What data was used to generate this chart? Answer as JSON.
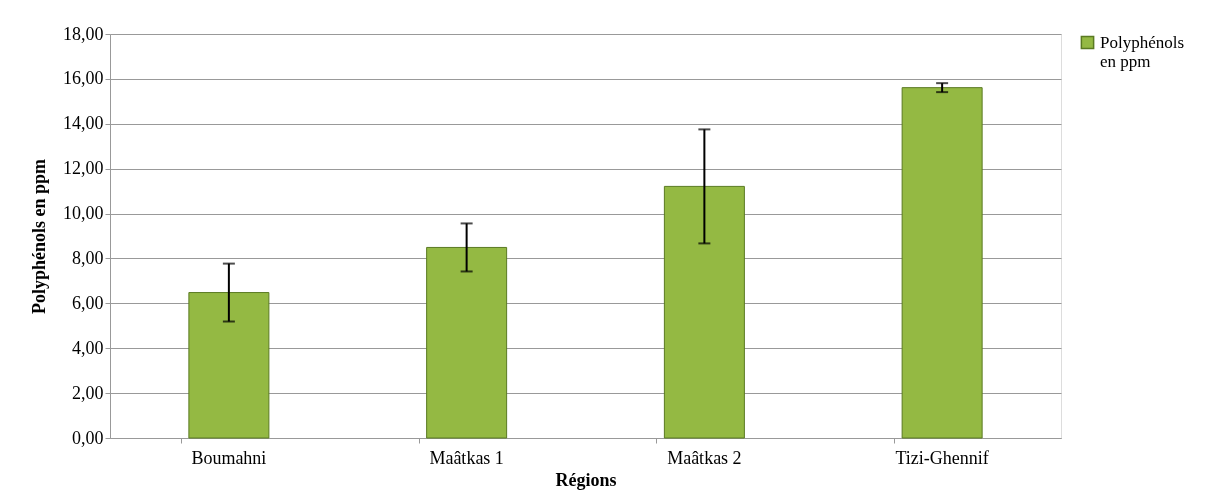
{
  "chart_data": {
    "type": "bar",
    "xlabel": "Régions",
    "ylabel": "Polyphénols en ppm",
    "categories": [
      "Boumahni",
      "Maâtkas 1",
      "Maâtkas 2",
      "Tizi-Ghennif"
    ],
    "series": [
      {
        "name": "Polyphénols en ppm",
        "color": "#94b943",
        "values": [
          6.48,
          8.49,
          11.21,
          15.61
        ],
        "errors": [
          1.29,
          1.07,
          2.54,
          0.2
        ]
      }
    ],
    "ylim": [
      0,
      18
    ],
    "yticks": [
      {
        "value": 0,
        "label": "0,00"
      },
      {
        "value": 2,
        "label": "2,00"
      },
      {
        "value": 4,
        "label": "4,00"
      },
      {
        "value": 6,
        "label": "6,00"
      },
      {
        "value": 8,
        "label": "8,00"
      },
      {
        "value": 10,
        "label": "10,00"
      },
      {
        "value": 12,
        "label": "12,00"
      },
      {
        "value": 14,
        "label": "14,00"
      },
      {
        "value": 16,
        "label": "16,00"
      },
      {
        "value": 18,
        "label": "18,00"
      }
    ],
    "grid": "y",
    "legend": "right"
  }
}
